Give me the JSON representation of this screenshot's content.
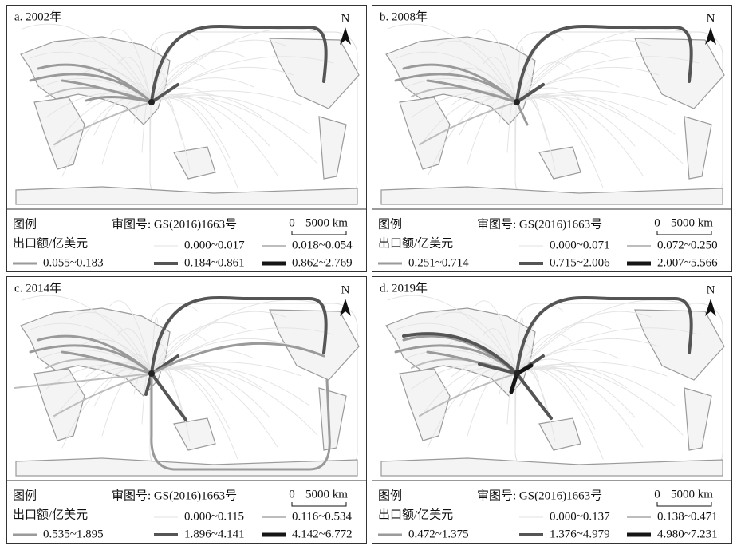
{
  "panels": [
    {
      "label": "a. 2002年",
      "north": "N",
      "legend_title": "图例",
      "review_no": "审图号: GS(2016)1663号",
      "scale_zero": "0",
      "scale_label": "5000 km",
      "unit": "出口额/亿美元",
      "classes": [
        "0.000~0.017",
        "0.018~0.054",
        "0.055~0.183",
        "0.184~0.861",
        "0.862~2.769"
      ]
    },
    {
      "label": "b. 2008年",
      "north": "N",
      "legend_title": "图例",
      "review_no": "审图号: GS(2016)1663号",
      "scale_zero": "0",
      "scale_label": "5000 km",
      "unit": "出口额/亿美元",
      "classes": [
        "0.000~0.071",
        "0.072~0.250",
        "0.251~0.714",
        "0.715~2.006",
        "2.007~5.566"
      ]
    },
    {
      "label": "c. 2014年",
      "north": "N",
      "legend_title": "图例",
      "review_no": "审图号: GS(2016)1663号",
      "scale_zero": "0",
      "scale_label": "5000 km",
      "unit": "出口额/亿美元",
      "classes": [
        "0.000~0.115",
        "0.116~0.534",
        "0.535~1.895",
        "1.896~4.141",
        "4.142~6.772"
      ]
    },
    {
      "label": "d. 2019年",
      "north": "N",
      "legend_title": "图例",
      "review_no": "审图号: GS(2016)1663号",
      "scale_zero": "0",
      "scale_label": "5000 km",
      "unit": "出口额/亿美元",
      "classes": [
        "0.000~0.137",
        "0.138~0.471",
        "0.472~1.375",
        "1.376~4.979",
        "4.980~7.231"
      ]
    }
  ]
}
